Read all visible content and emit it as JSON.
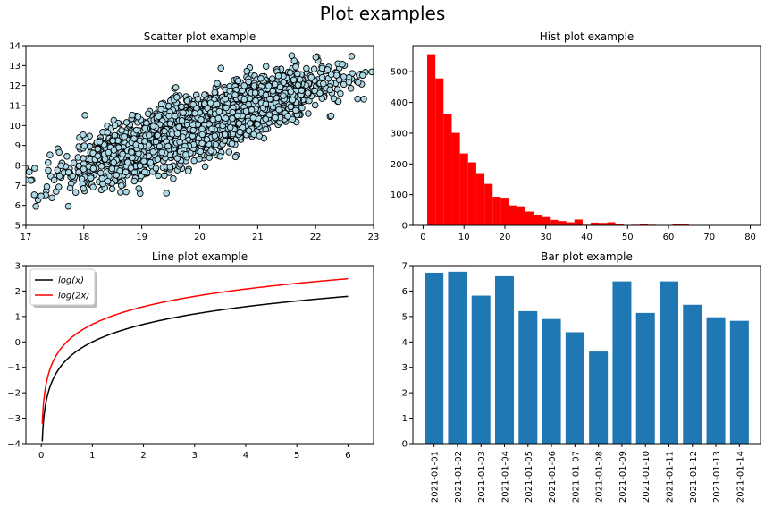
{
  "figure": {
    "title": "Plot examples"
  },
  "chart_data": [
    {
      "type": "scatter",
      "title": "Scatter plot example",
      "xlim": [
        17,
        23
      ],
      "ylim": [
        5,
        14
      ],
      "xticks": [
        "17",
        "18",
        "19",
        "20",
        "21",
        "22",
        "23"
      ],
      "yticks": [
        "5",
        "6",
        "7",
        "8",
        "9",
        "10",
        "11",
        "12",
        "13",
        "14"
      ],
      "marker_face": "#add8e6",
      "marker_edge": "#000000",
      "approx_point_count": 3000,
      "trend": {
        "x_mean": 20,
        "x_std": 1.0,
        "y_intercept_at_x20": 10,
        "slope": 1.0,
        "y_noise_std": 0.7
      }
    },
    {
      "type": "bar",
      "subtype": "histogram",
      "title": "Hist plot example",
      "color": "#ff0000",
      "xlim": [
        -2.5,
        82.5
      ],
      "ylim": [
        0,
        585
      ],
      "xticks": [
        "0",
        "10",
        "20",
        "30",
        "40",
        "50",
        "60",
        "70",
        "80"
      ],
      "yticks": [
        "0",
        "100",
        "200",
        "300",
        "400",
        "500"
      ],
      "bin_start": 1,
      "bin_width": 2,
      "counts": [
        557,
        478,
        362,
        301,
        234,
        205,
        170,
        135,
        93,
        90,
        65,
        62,
        45,
        35,
        27,
        18,
        14,
        10,
        19,
        2,
        9,
        8,
        10,
        4,
        0,
        2,
        3,
        2,
        1,
        1,
        3,
        3
      ]
    },
    {
      "type": "line",
      "title": "Line plot example",
      "xlim": [
        -0.3,
        6.5
      ],
      "ylim": [
        -4,
        3
      ],
      "xticks": [
        "0",
        "1",
        "2",
        "3",
        "4",
        "5",
        "6"
      ],
      "yticks": [
        "−4",
        "−3",
        "−2",
        "−1",
        "0",
        "1",
        "2",
        "3"
      ],
      "x_range": [
        0.02,
        6
      ],
      "series": [
        {
          "name": "log(x)",
          "color": "#000000",
          "function": "log(x)"
        },
        {
          "name": "log(2x)",
          "color": "#ff0000",
          "function": "log(2x)"
        }
      ],
      "legend": "upper-left"
    },
    {
      "type": "bar",
      "title": "Bar plot example",
      "color": "#1f77b4",
      "ylim": [
        0,
        7
      ],
      "yticks": [
        "0",
        "1",
        "2",
        "3",
        "4",
        "5",
        "6",
        "7"
      ],
      "categories": [
        "2021-01-01",
        "2021-01-02",
        "2021-01-03",
        "2021-01-04",
        "2021-01-05",
        "2021-01-06",
        "2021-01-07",
        "2021-01-08",
        "2021-01-09",
        "2021-01-10",
        "2021-01-11",
        "2021-01-12",
        "2021-01-13",
        "2021-01-14"
      ],
      "values": [
        6.72,
        6.76,
        5.82,
        6.58,
        5.21,
        4.9,
        4.38,
        3.62,
        6.38,
        5.14,
        6.38,
        5.46,
        4.97,
        4.83
      ]
    }
  ]
}
